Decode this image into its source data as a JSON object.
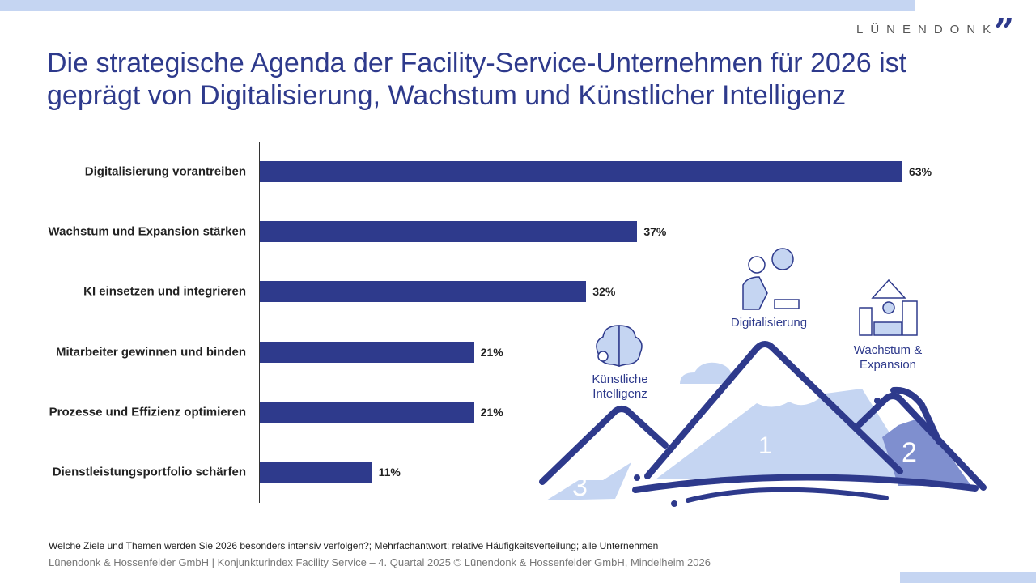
{
  "header": {
    "logo_text": "LÜNENDONK",
    "logo_mark": "”"
  },
  "title": "Die strategische Agenda der Facility-Service-Unternehmen für 2026 ist geprägt von Digitalisierung, Wachstum und Künstlicher Intelligenz",
  "chart_data": {
    "type": "bar",
    "orientation": "horizontal",
    "categories": [
      "Digitalisierung vorantreiben",
      "Wachstum und Expansion stärken",
      "KI einsetzen und integrieren",
      "Mitarbeiter gewinnen und binden",
      "Prozesse und Effizienz optimieren",
      "Dienstleistungsportfolio schärfen"
    ],
    "values": [
      63,
      37,
      32,
      21,
      21,
      11
    ],
    "value_labels": [
      "63%",
      "37%",
      "32%",
      "21%",
      "21%",
      "11%"
    ],
    "unit": "%",
    "xlim": [
      0,
      63
    ],
    "grid": false,
    "bar_color": "#2e3a8c"
  },
  "illustration": {
    "labels": {
      "ki": "Künstliche Intelligenz",
      "digital": "Digitalisierung",
      "wachstum": "Wachstum & Expansion"
    },
    "ranks": {
      "digital": "1",
      "wachstum": "2",
      "ki": "3"
    },
    "colors": {
      "navy": "#2e3a8c",
      "light": "#c5d5f2",
      "mid": "#7f8fcf"
    }
  },
  "footer": {
    "note": "Welche Ziele und Themen werden Sie 2026 besonders intensiv verfolgen?; Mehrfachantwort; relative Häufigkeitsverteilung; alle Unternehmen",
    "source": "Lünendonk & Hossenfelder GmbH | Konjunkturindex Facility Service – 4. Quartal 2025 © Lünendonk & Hossenfelder GmbH, Mindelheim 2026"
  }
}
